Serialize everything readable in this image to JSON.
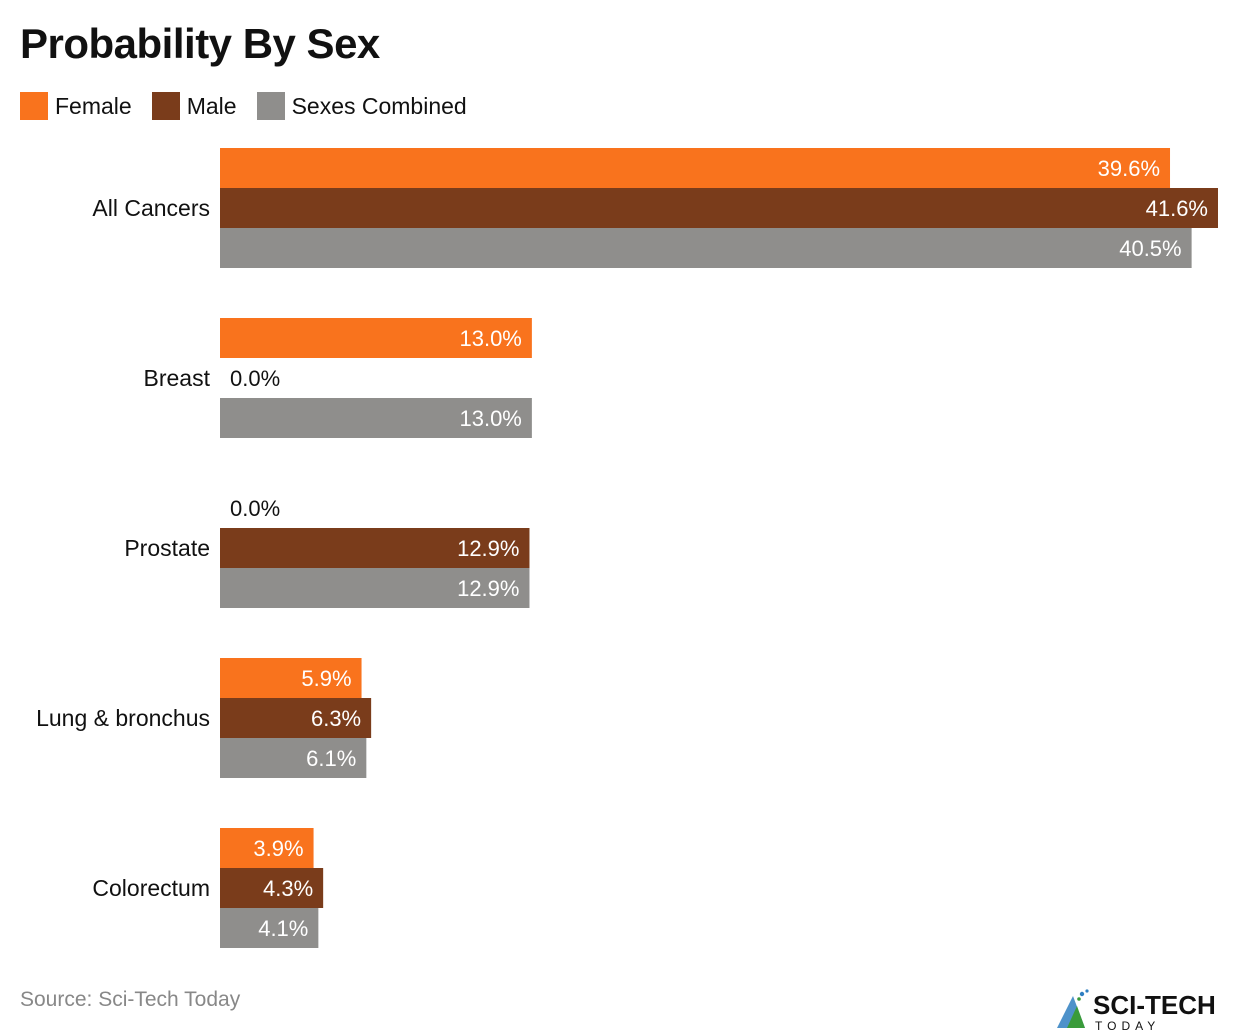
{
  "chart_data": {
    "type": "bar",
    "orientation": "horizontal",
    "title": "Probability By Sex",
    "categories": [
      "All Cancers",
      "Breast",
      "Prostate",
      "Lung & bronchus",
      "Colorectum"
    ],
    "series": [
      {
        "name": "Female",
        "color": "#f9731d",
        "values": [
          39.6,
          13.0,
          0.0,
          5.9,
          3.9
        ],
        "labels": [
          "39.6%",
          "13.0%",
          "0.0%",
          "5.9%",
          "3.9%"
        ]
      },
      {
        "name": "Male",
        "color": "#7a3c1b",
        "values": [
          41.6,
          0.0,
          12.9,
          6.3,
          4.3
        ],
        "labels": [
          "41.6%",
          "0.0%",
          "12.9%",
          "6.3%",
          "4.3%"
        ]
      },
      {
        "name": "Sexes Combined",
        "color": "#8f8e8c",
        "values": [
          40.5,
          13.0,
          12.9,
          6.1,
          4.1
        ],
        "labels": [
          "40.5%",
          "13.0%",
          "12.9%",
          "6.1%",
          "4.1%"
        ]
      }
    ],
    "xlim": [
      0,
      41.6
    ],
    "grid": false,
    "legend_position": "top-left",
    "xlabel": "",
    "ylabel": ""
  },
  "source": "Source: Sci-Tech Today",
  "logo": {
    "text": "SCI-TECH TODAY"
  }
}
